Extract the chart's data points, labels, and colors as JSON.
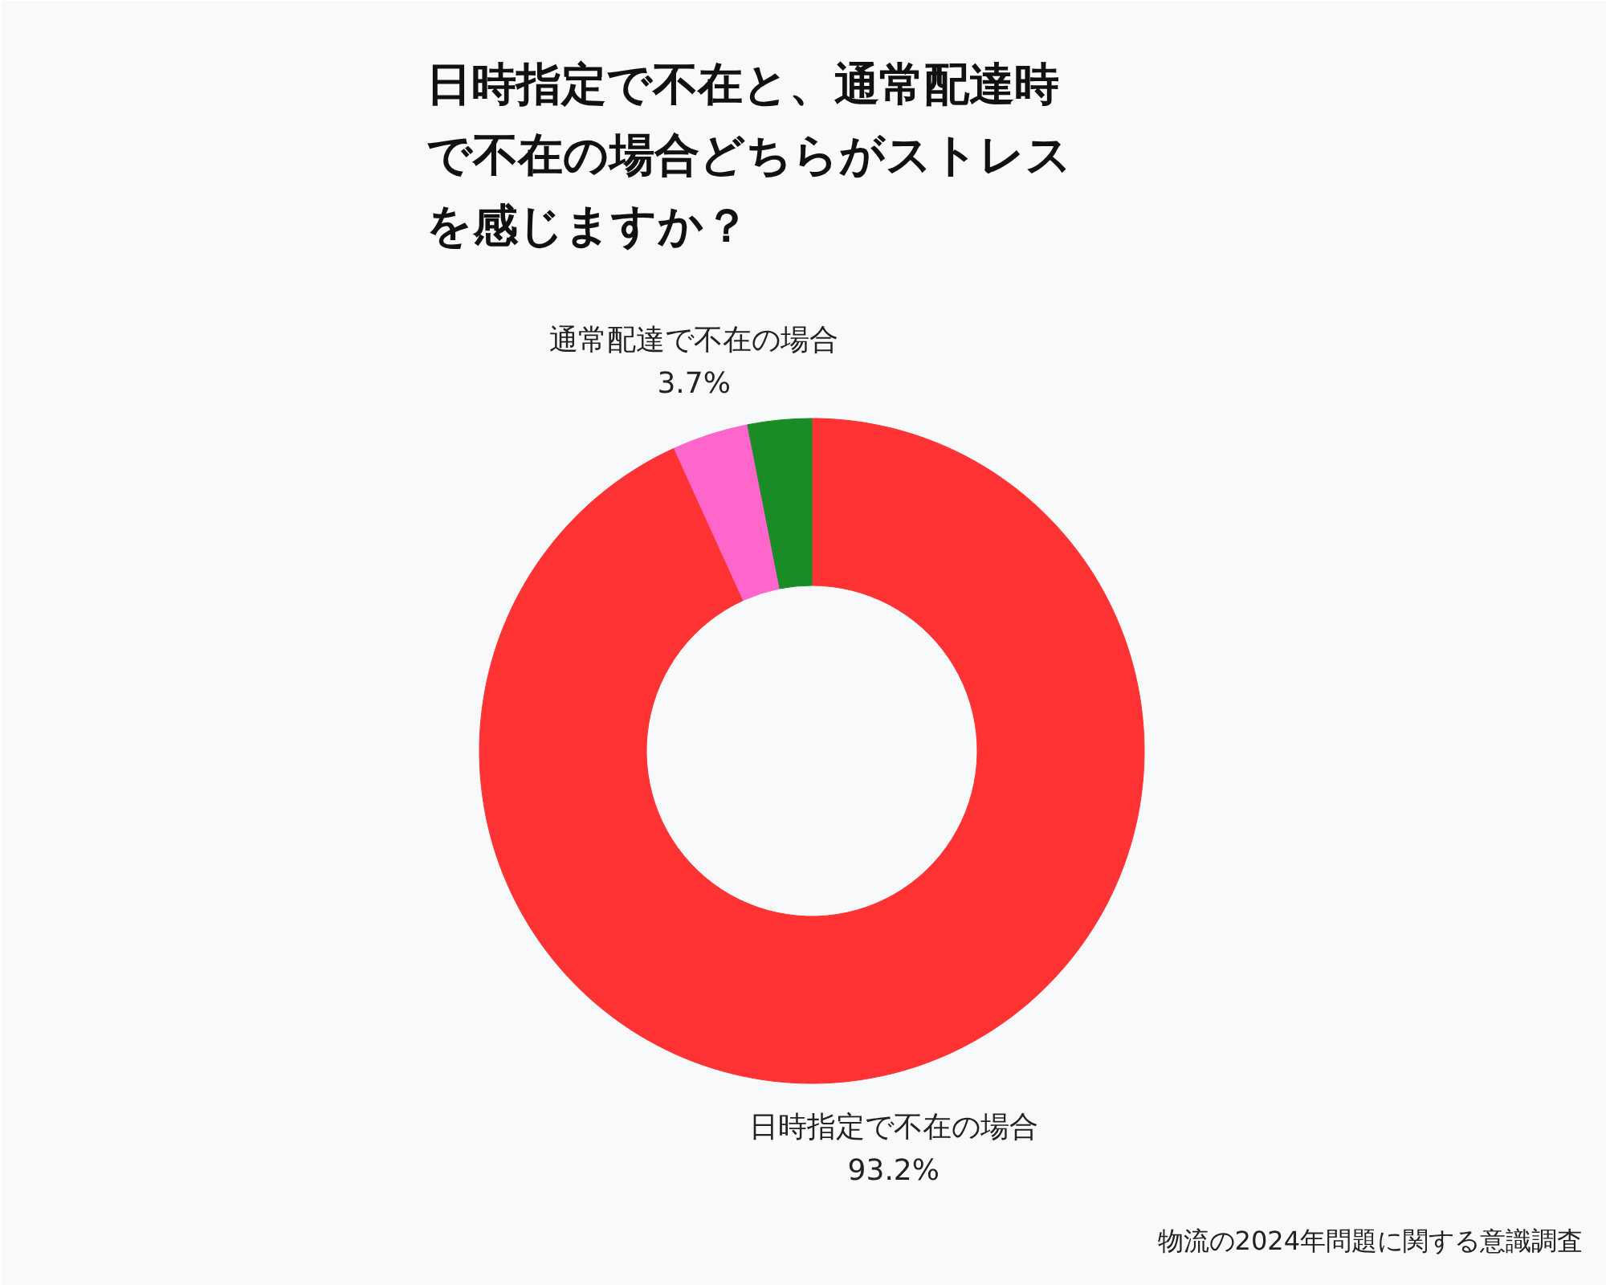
{
  "chart_data": {
    "type": "donut",
    "title": "日時指定で不在と、通常配達時で不在の場合どちらがストレスを感じますか？",
    "categories": [
      "日時指定で不在の場合",
      "通常配達で不在の場合",
      null
    ],
    "values": [
      93.2,
      3.7,
      3.1
    ],
    "colors": [
      "#ff3333",
      "#ff66cc",
      "#1a8c26"
    ],
    "value_labels": [
      "93.2%",
      "3.7%",
      null
    ],
    "annotations": [
      "物流の2024年問題に関する意識調査"
    ]
  }
}
